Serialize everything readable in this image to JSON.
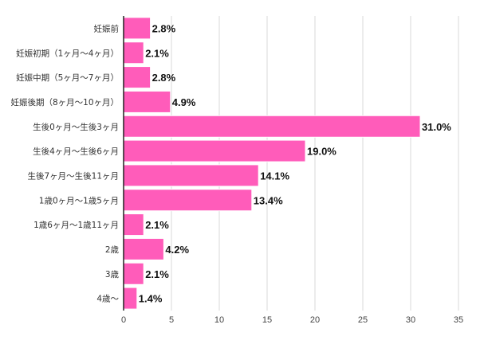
{
  "colors": {
    "bar": "#ff5cba",
    "bar_stroke": "#ffffff",
    "grid": "#d9d9d9",
    "axis": "#222222"
  },
  "chart_data": {
    "type": "bar",
    "orientation": "horizontal",
    "categories": [
      "妊娠前",
      "妊娠初期（1ヶ月〜4ヶ月）",
      "妊娠中期（5ヶ月〜7ヶ月）",
      "妊娠後期（8ヶ月〜10ヶ月）",
      "生後0ヶ月〜生後3ヶ月",
      "生後4ヶ月〜生後6ヶ月",
      "生後7ヶ月〜生後11ヶ月",
      "1歳0ヶ月〜1歳5ヶ月",
      "1歳6ヶ月〜1歳11ヶ月",
      "2歳",
      "3歳",
      "4歳〜"
    ],
    "values": [
      2.8,
      2.1,
      2.8,
      4.9,
      31.0,
      19.0,
      14.1,
      13.4,
      2.1,
      4.2,
      2.1,
      1.4
    ],
    "value_labels": [
      "2.8%",
      "2.1%",
      "2.8%",
      "4.9%",
      "31.0%",
      "19.0%",
      "14.1%",
      "13.4%",
      "2.1%",
      "4.2%",
      "2.1%",
      "1.4%"
    ],
    "xlim": [
      0,
      35
    ],
    "xticks": [
      0,
      5,
      10,
      15,
      20,
      25,
      30,
      35
    ],
    "xtick_labels": [
      "0",
      "5",
      "10",
      "15",
      "20",
      "25",
      "30",
      "35"
    ],
    "grid": true,
    "legend": false
  }
}
